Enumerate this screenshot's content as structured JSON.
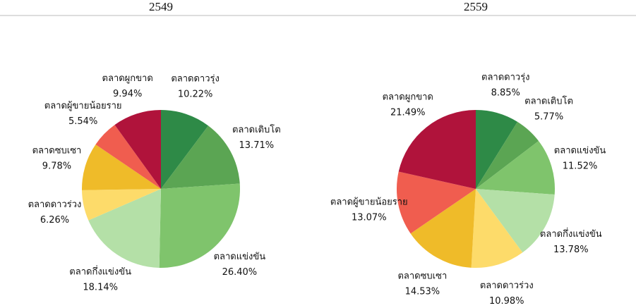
{
  "chart_data": [
    {
      "type": "pie",
      "title": "2549",
      "categories": [
        "ตลาดดาวรุ่ง",
        "ตลาดเติบโต",
        "ตลาดแข่งขัน",
        "ตลาดกึ่งแข่งขัน",
        "ตลาดดาวร่วง",
        "ตลาดซบเซา",
        "ตลาดผู้ขายน้อยราย",
        "ตลาดผูกขาด"
      ],
      "values": [
        10.22,
        13.71,
        26.4,
        18.14,
        6.26,
        9.78,
        5.54,
        9.94
      ],
      "value_labels": [
        "10.22%",
        "13.71%",
        "26.40%",
        "18.14%",
        "6.26%",
        "9.78%",
        "5.54%",
        "9.94%"
      ],
      "colors": [
        "#2e8a47",
        "#5ba553",
        "#7fc46c",
        "#b4e0a7",
        "#fddb6a",
        "#efbb29",
        "#f05d4f",
        "#b0133b"
      ]
    },
    {
      "type": "pie",
      "title": "2559",
      "categories": [
        "ตลาดดาวรุ่ง",
        "ตลาดเติบโต",
        "ตลาดแข่งขัน",
        "ตลาดกึ่งแข่งขัน",
        "ตลาดดาวร่วง",
        "ตลาดซบเซา",
        "ตลาดผู้ขายน้อยราย",
        "ตลาดผูกขาด"
      ],
      "values": [
        8.85,
        5.77,
        11.52,
        13.78,
        10.98,
        14.53,
        13.07,
        21.49
      ],
      "value_labels": [
        "8.85%",
        "5.77%",
        "11.52%",
        "13.78%",
        "10.98%",
        "14.53%",
        "13.07%",
        "21.49%"
      ],
      "colors": [
        "#2e8a47",
        "#5ba553",
        "#7fc46c",
        "#b4e0a7",
        "#fddb6a",
        "#efbb29",
        "#f05d4f",
        "#b0133b"
      ]
    }
  ]
}
